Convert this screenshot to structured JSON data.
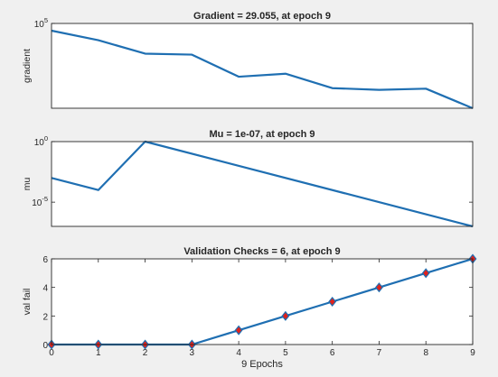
{
  "chart_data": [
    {
      "type": "line",
      "title": "Gradient = 29.055, at epoch 9",
      "ylabel": "gradient",
      "xlabel": "",
      "yscale": "log",
      "ylim": [
        29,
        100000
      ],
      "xlim": [
        0,
        9
      ],
      "x_ticks": [],
      "y_ticks": [
        {
          "value": 100000,
          "base": "10",
          "exp": "5"
        }
      ],
      "grid": false,
      "series": [
        {
          "color": "#1f6fb2",
          "x": [
            0,
            1,
            2,
            3,
            4,
            5,
            6,
            7,
            8,
            9
          ],
          "values": [
            50000,
            20000,
            5500,
            5000,
            600,
            800,
            200,
            170,
            190,
            29.055
          ]
        }
      ]
    },
    {
      "type": "line",
      "title": "Mu = 1e-07, at epoch 9",
      "ylabel": "mu",
      "xlabel": "",
      "yscale": "log",
      "ylim": [
        1e-07,
        1
      ],
      "xlim": [
        0,
        9
      ],
      "x_ticks": [],
      "y_ticks": [
        {
          "value": 1,
          "base": "10",
          "exp": "0"
        },
        {
          "value": 1e-05,
          "base": "10",
          "exp": "-5"
        }
      ],
      "grid": false,
      "series": [
        {
          "color": "#1f6fb2",
          "x": [
            0,
            1,
            2,
            9
          ],
          "values": [
            0.001,
            0.0001,
            1,
            1e-07
          ]
        }
      ]
    },
    {
      "type": "scatter",
      "title": "Validation Checks = 6, at epoch 9",
      "ylabel": "val fail",
      "xlabel": "9 Epochs",
      "yscale": "linear",
      "ylim": [
        0,
        6
      ],
      "xlim": [
        0,
        9
      ],
      "x_ticks": [
        "0",
        "1",
        "2",
        "3",
        "4",
        "5",
        "6",
        "7",
        "8",
        "9"
      ],
      "y_ticks": [
        {
          "value": 0,
          "label": "0"
        },
        {
          "value": 2,
          "label": "2"
        },
        {
          "value": 4,
          "label": "4"
        },
        {
          "value": 6,
          "label": "6"
        }
      ],
      "grid": false,
      "series": [
        {
          "color": "#1f6fb2",
          "marker": "diamond",
          "marker_color": "#e0211b",
          "x": [
            0,
            1,
            2,
            3,
            4,
            5,
            6,
            7,
            8,
            9
          ],
          "values": [
            0,
            0,
            0,
            0,
            1,
            2,
            3,
            4,
            5,
            6
          ]
        }
      ]
    }
  ]
}
